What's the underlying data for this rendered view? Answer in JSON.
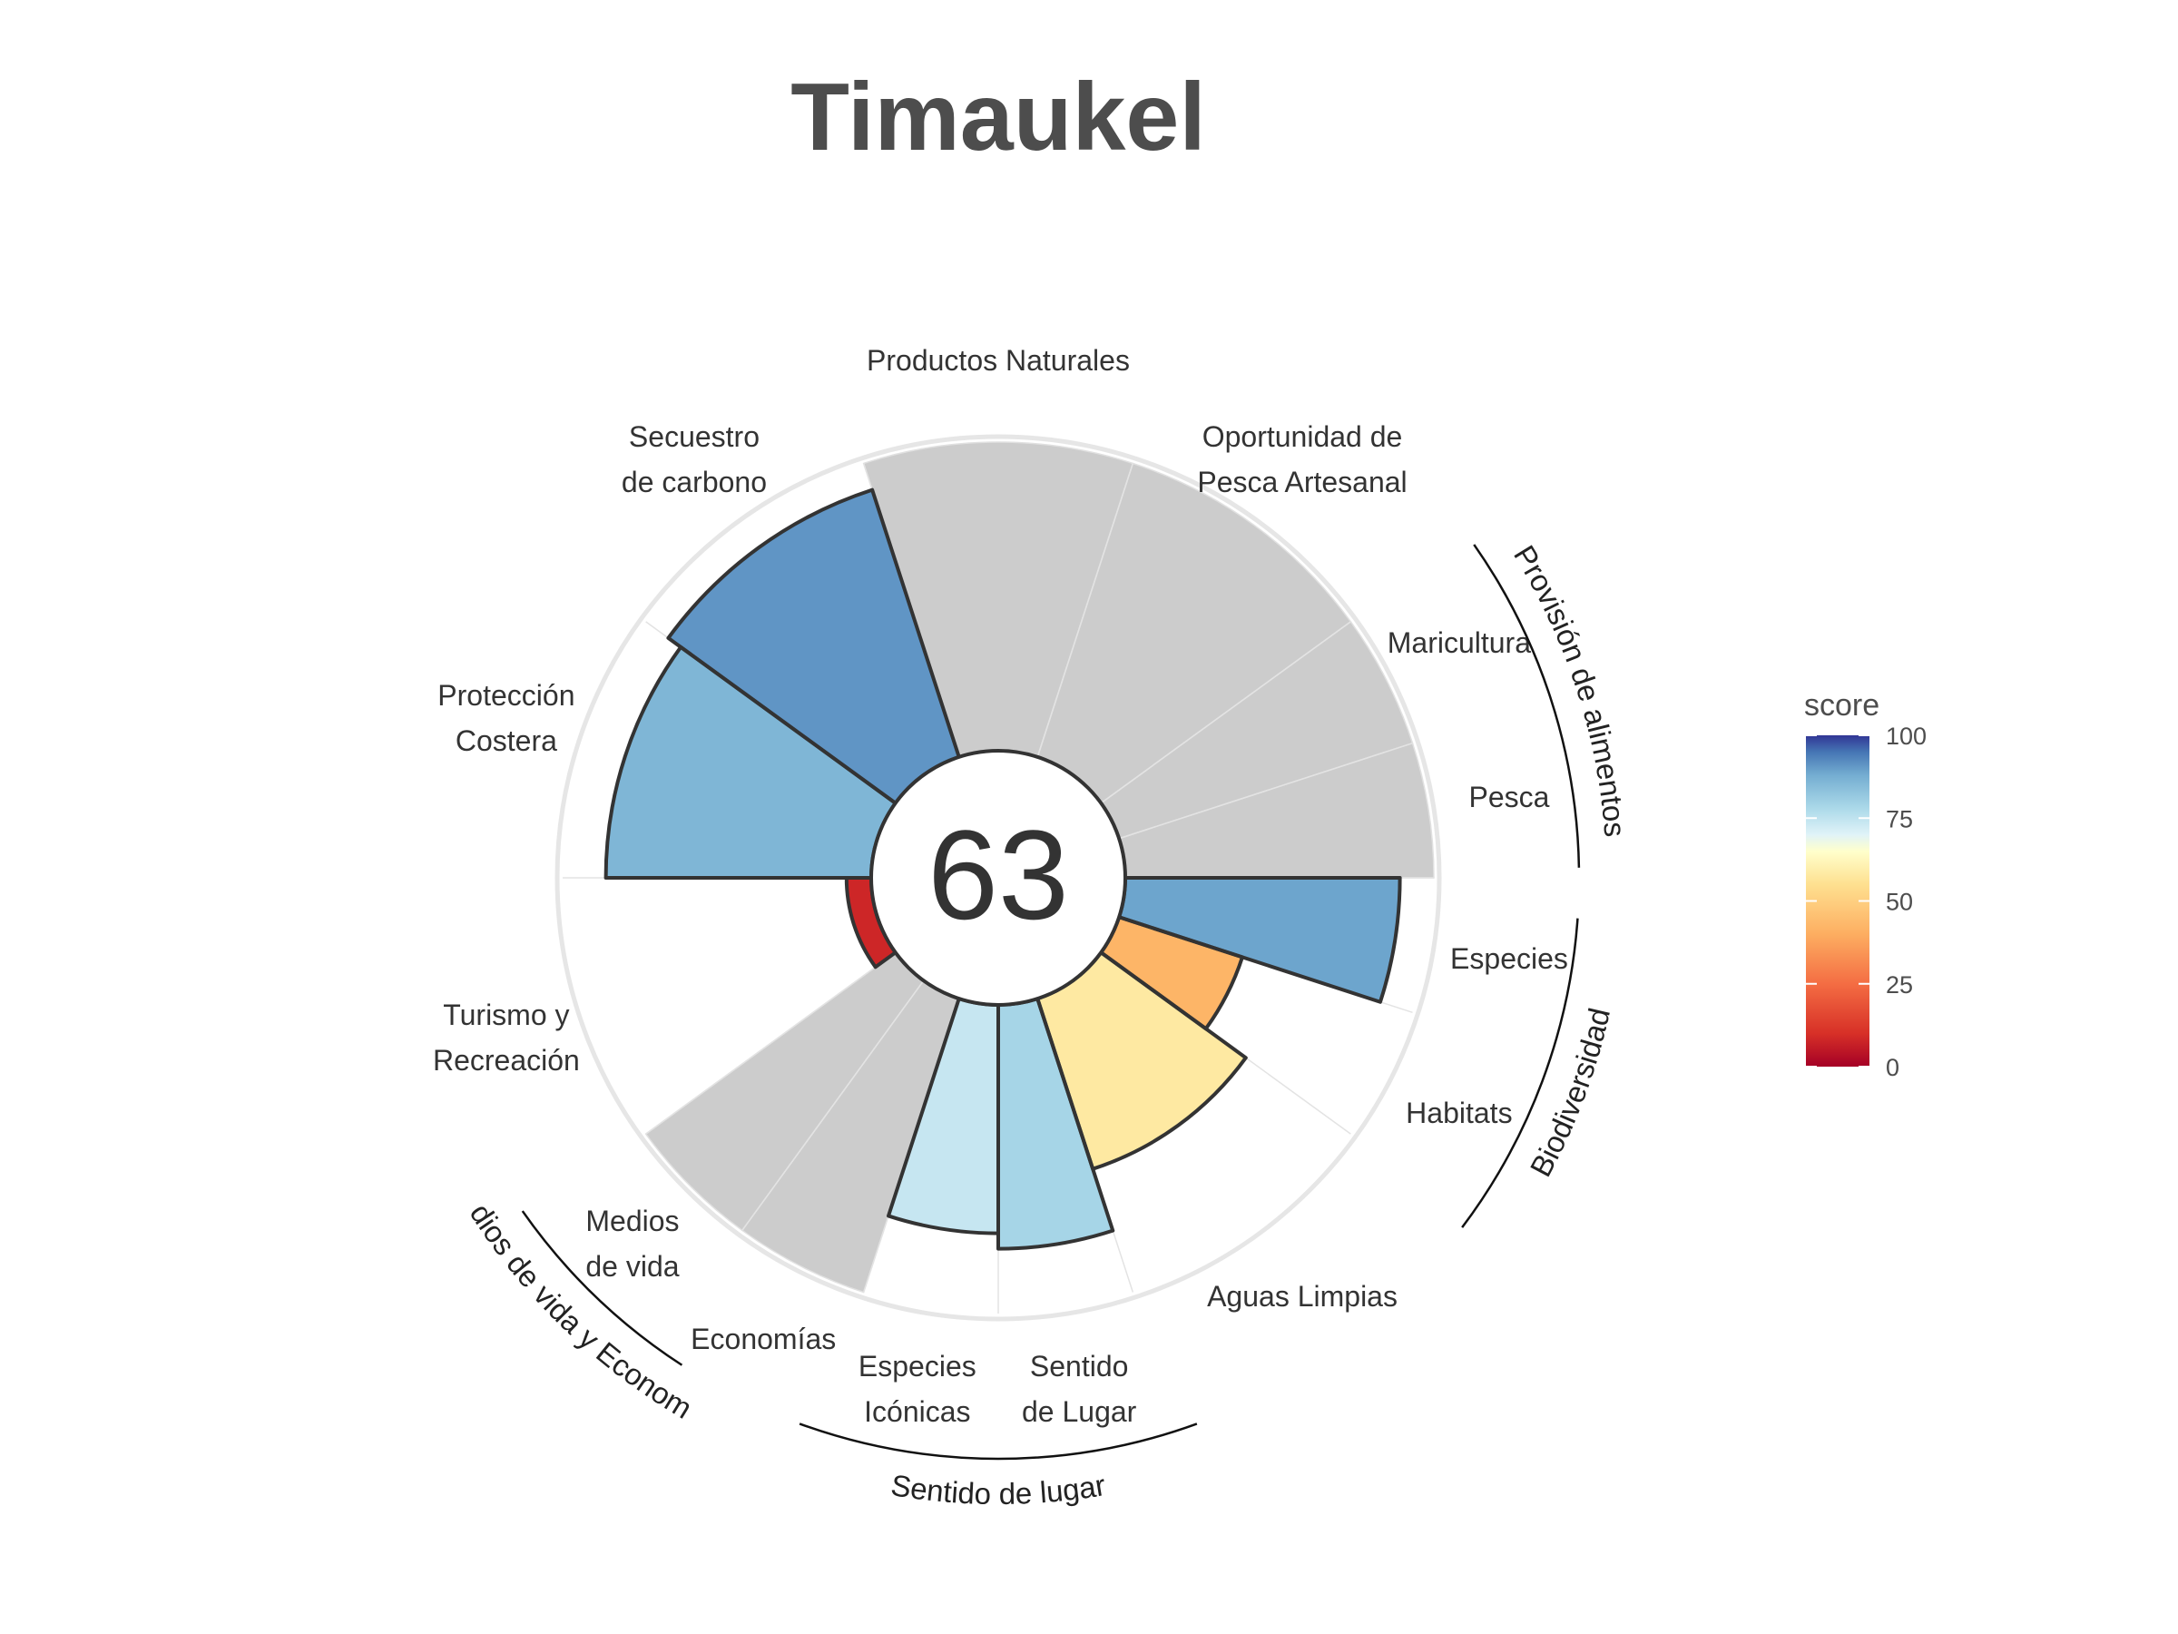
{
  "chart_data": {
    "type": "polar-bar",
    "title": "Timaukel",
    "center_value": "63",
    "max_score": 100,
    "legend": {
      "title": "score",
      "ticks": [
        0,
        25,
        50,
        75,
        100
      ],
      "position": "right"
    },
    "colors": {
      "na": "#cccccc",
      "outline": "#333333",
      "ring": "#e6e6e6"
    },
    "color_scale": [
      [
        0,
        "#a50026"
      ],
      [
        10,
        "#d73027"
      ],
      [
        25,
        "#f46d43"
      ],
      [
        40,
        "#fdae61"
      ],
      [
        55,
        "#fee090"
      ],
      [
        65,
        "#ffffcc"
      ],
      [
        70,
        "#e0f3f8"
      ],
      [
        78,
        "#abd9e9"
      ],
      [
        88,
        "#74add1"
      ],
      [
        95,
        "#4575b4"
      ],
      [
        100,
        "#313695"
      ]
    ],
    "categories": [
      {
        "label": "Productos Naturales",
        "score": null,
        "weight": 1
      },
      {
        "label": "Oportunidad de\nPesca Artesanal",
        "score": null,
        "weight": 1
      },
      {
        "label": "Maricultura",
        "score": null,
        "weight": 0.5
      },
      {
        "label": "Pesca",
        "score": null,
        "weight": 0.5
      },
      {
        "label": "Especies",
        "score": 89,
        "weight": 0.5
      },
      {
        "label": "Habitats",
        "score": 42,
        "weight": 0.5
      },
      {
        "label": "Aguas Limpias",
        "score": 58,
        "weight": 1
      },
      {
        "label": "Sentido\nde Lugar",
        "score": 79,
        "weight": 0.5
      },
      {
        "label": "Especies\nIcónicas",
        "score": 74,
        "weight": 0.5
      },
      {
        "label": "Economías",
        "score": null,
        "weight": 0.5
      },
      {
        "label": "Medios\nde vida",
        "score": null,
        "weight": 0.5
      },
      {
        "label": "Turismo y\nRecreación",
        "score": 8,
        "weight": 1
      },
      {
        "label": "Protección\nCostera",
        "score": 86,
        "weight": 1
      },
      {
        "label": "Secuestro\nde carbono",
        "score": 91,
        "weight": 1
      }
    ],
    "groups": [
      {
        "label": "Provisión de alimentos"
      },
      {
        "label": "Biodiversidad"
      },
      {
        "label": "Sentido de lugar"
      },
      {
        "label": "Medios de vida y Economías"
      }
    ]
  }
}
